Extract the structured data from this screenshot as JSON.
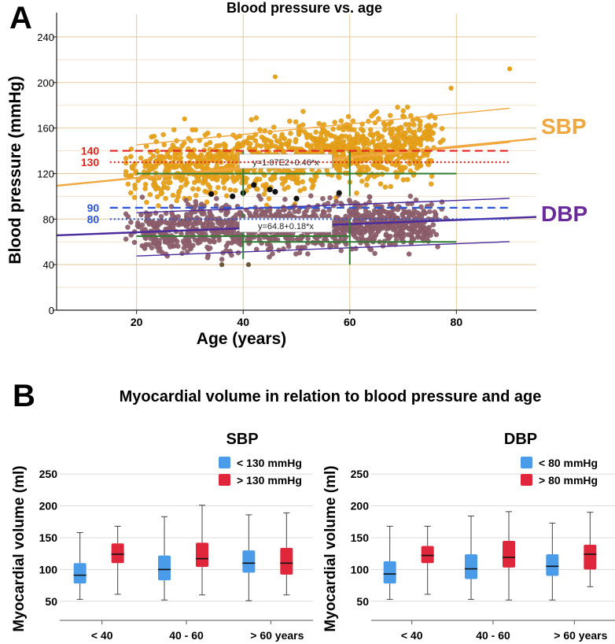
{
  "panels": {
    "a": {
      "letter": "A"
    },
    "b": {
      "letter": "B",
      "heading": "Myocardial volume in relation to blood pressure and age"
    }
  },
  "chart_data": [
    {
      "id": "bp_vs_age",
      "type": "scatter",
      "title": "Blood pressure vs. age",
      "xlabel": "Age (years)",
      "ylabel": "Blood pressure (mmHg)",
      "xlim": [
        5,
        95
      ],
      "ylim": [
        0,
        260
      ],
      "xticks": [
        20,
        40,
        60,
        80
      ],
      "yticks": [
        0,
        40,
        80,
        120,
        160,
        200,
        240
      ],
      "grid": true,
      "series": [
        {
          "name": "SBP",
          "color": "#E8A21A",
          "fit_label": "y=1.07E2+0.46*x",
          "fit": {
            "intercept": 107,
            "slope": 0.46
          },
          "ci_upper": {
            "intercept": 136,
            "slope": 0.46
          },
          "ci_lower": {
            "intercept": 106,
            "slope": 0.46
          },
          "x_range": [
            18,
            90
          ],
          "y_center": 133,
          "y_spread": 14
        },
        {
          "name": "DBP",
          "color": "#8F5F6D",
          "fit_label": "y=64.8+0.18*x",
          "fit": {
            "intercept": 64.8,
            "slope": 0.18
          },
          "ci_upper": {
            "intercept": 82,
            "slope": 0.18
          },
          "ci_lower": {
            "intercept": 44,
            "slope": 0.18
          },
          "x_range": [
            18,
            90
          ],
          "y_center": 73,
          "y_spread": 10
        }
      ],
      "outliers": [
        {
          "x": 46,
          "y": 205
        },
        {
          "x": 90,
          "y": 212
        },
        {
          "x": 29,
          "y": 168
        },
        {
          "x": 79,
          "y": 195
        },
        {
          "x": 36,
          "y": 40
        },
        {
          "x": 41,
          "y": 40
        }
      ],
      "highlighted_points": [
        {
          "x": 34,
          "y": 102
        },
        {
          "x": 38,
          "y": 100
        },
        {
          "x": 40,
          "y": 103
        },
        {
          "x": 42,
          "y": 110
        },
        {
          "x": 45,
          "y": 106
        },
        {
          "x": 46,
          "y": 104
        },
        {
          "x": 50,
          "y": 98
        },
        {
          "x": 58,
          "y": 103
        }
      ],
      "thresholds": [
        {
          "label": "140",
          "value": 140,
          "style": "dashed",
          "color": "#E0261E"
        },
        {
          "label": "130",
          "value": 130,
          "style": "dotted",
          "color": "#E0261E"
        },
        {
          "label": "90",
          "value": 90,
          "style": "dashed",
          "color": "#2A55D6"
        },
        {
          "label": "80",
          "value": 80,
          "style": "dotted",
          "color": "#2A55D6"
        }
      ],
      "annotations": [
        {
          "text": "SBP",
          "color": "#F0A73E"
        },
        {
          "text": "DBP",
          "color": "#6A2A9C"
        }
      ],
      "center_markers": [
        {
          "x": 40,
          "y": 120
        },
        {
          "x": 60,
          "y": 120
        },
        {
          "x": 40,
          "y": 65
        },
        {
          "x": 60,
          "y": 60
        }
      ]
    },
    {
      "id": "sbp_boxplot",
      "type": "box",
      "title": "SBP",
      "ylabel": "Myocardial volume (ml)",
      "ylim": [
        20,
        270
      ],
      "yticks": [
        50,
        100,
        150,
        200,
        250
      ],
      "categories": [
        "< 40",
        "40 - 60",
        "> 60 years"
      ],
      "legend": [
        "< 130 mmHg",
        "> 130 mmHg"
      ],
      "legend_position": "top-right",
      "colors": [
        "#4A9BE8",
        "#E0263A"
      ],
      "series": [
        {
          "name": "< 130 mmHg",
          "boxes": [
            {
              "min": 53,
              "q1": 78,
              "median": 91,
              "q3": 110,
              "max": 158
            },
            {
              "min": 52,
              "q1": 83,
              "median": 100,
              "q3": 122,
              "max": 183
            },
            {
              "min": 51,
              "q1": 95,
              "median": 110,
              "q3": 130,
              "max": 186
            }
          ]
        },
        {
          "name": "> 130 mmHg",
          "boxes": [
            {
              "min": 61,
              "q1": 110,
              "median": 124,
              "q3": 141,
              "max": 168
            },
            {
              "min": 60,
              "q1": 104,
              "median": 117,
              "q3": 142,
              "max": 201
            },
            {
              "min": 60,
              "q1": 92,
              "median": 110,
              "q3": 134,
              "max": 189
            }
          ]
        }
      ]
    },
    {
      "id": "dbp_boxplot",
      "type": "box",
      "title": "DBP",
      "ylabel": "Myocardial volume (ml)",
      "ylim": [
        20,
        270
      ],
      "yticks": [
        50,
        100,
        150,
        200,
        250
      ],
      "categories": [
        "< 40",
        "40 - 60",
        "> 60 years"
      ],
      "legend": [
        "< 80 mmHg",
        "> 80 mmHg"
      ],
      "legend_position": "top-right",
      "colors": [
        "#4A9BE8",
        "#E0263A"
      ],
      "series": [
        {
          "name": "< 80 mmHg",
          "boxes": [
            {
              "min": 53,
              "q1": 78,
              "median": 93,
              "q3": 113,
              "max": 168
            },
            {
              "min": 53,
              "q1": 85,
              "median": 101,
              "q3": 124,
              "max": 184
            },
            {
              "min": 52,
              "q1": 90,
              "median": 105,
              "q3": 124,
              "max": 173
            }
          ]
        },
        {
          "name": "> 80 mmHg",
          "boxes": [
            {
              "min": 61,
              "q1": 110,
              "median": 122,
              "q3": 137,
              "max": 168
            },
            {
              "min": 52,
              "q1": 103,
              "median": 119,
              "q3": 145,
              "max": 191
            },
            {
              "min": 73,
              "q1": 100,
              "median": 124,
              "q3": 139,
              "max": 190
            }
          ]
        }
      ]
    }
  ]
}
